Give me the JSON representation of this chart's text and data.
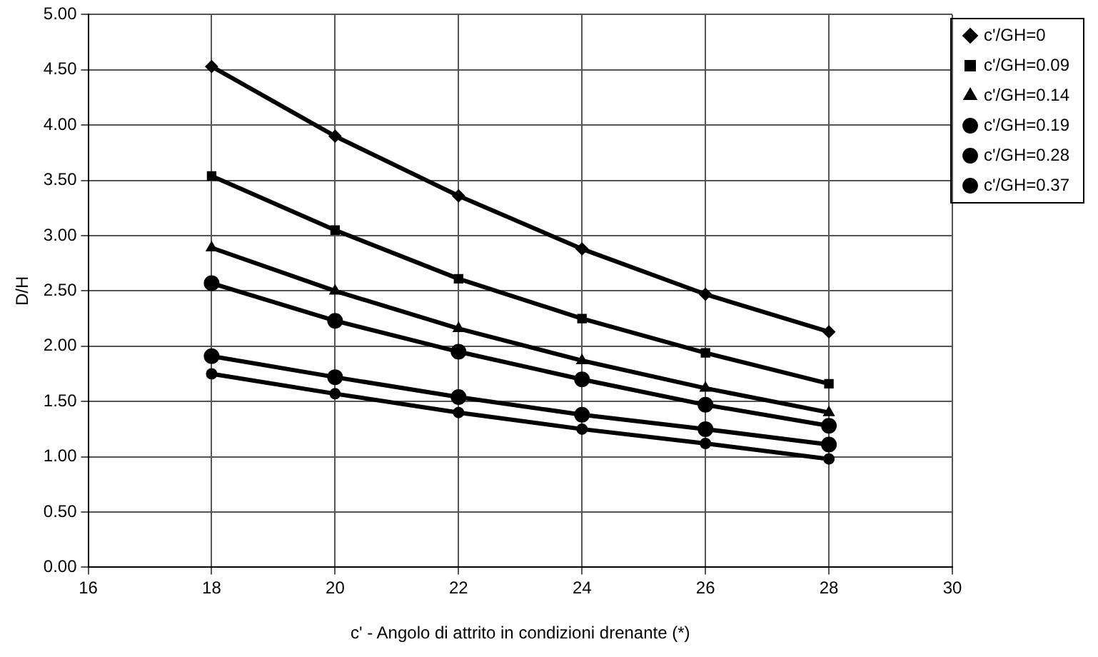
{
  "chart_data": {
    "type": "line",
    "xlabel": "c' - Angolo di attrito in condizioni drenante (*)",
    "ylabel": "D/H",
    "x": [
      18,
      20,
      22,
      24,
      26,
      28
    ],
    "series": [
      {
        "name": "c'/GH=0",
        "color": "#000000",
        "marker": "diamond",
        "values": [
          4.53,
          3.9,
          3.36,
          2.88,
          2.47,
          2.13
        ]
      },
      {
        "name": "c'/GH=0.09",
        "color": "#000000",
        "marker": "square",
        "values": [
          3.54,
          3.05,
          2.61,
          2.25,
          1.94,
          1.66
        ]
      },
      {
        "name": "c'/GH=0.14",
        "color": "#000000",
        "marker": "triangle",
        "values": [
          2.89,
          2.5,
          2.16,
          1.87,
          1.62,
          1.4
        ]
      },
      {
        "name": "c'/GH=0.19",
        "color": "#000000",
        "marker": "circle",
        "values": [
          2.57,
          2.23,
          1.95,
          1.7,
          1.47,
          1.28
        ]
      },
      {
        "name": "c'/GH=0.28",
        "color": "#000000",
        "marker": "circle",
        "values": [
          1.91,
          1.72,
          1.54,
          1.38,
          1.25,
          1.11
        ]
      },
      {
        "name": "c'/GH=0.37",
        "color": "#000000",
        "marker": "circle",
        "values": [
          1.75,
          1.57,
          1.4,
          1.25,
          1.12,
          0.98
        ]
      }
    ],
    "xlim": [
      16,
      30
    ],
    "xticks": [
      16,
      18,
      20,
      22,
      24,
      26,
      28,
      30
    ],
    "ylim": [
      0,
      5
    ],
    "yticks": [
      {
        "value": 0,
        "label": "0.00"
      },
      {
        "value": 0.5,
        "label": "0.50"
      },
      {
        "value": 1,
        "label": "1.00"
      },
      {
        "value": 1.5,
        "label": "1.50"
      },
      {
        "value": 2,
        "label": "2.00"
      },
      {
        "value": 2.5,
        "label": "2.50"
      },
      {
        "value": 3,
        "label": "3.00"
      },
      {
        "value": 3.5,
        "label": "3.50"
      },
      {
        "value": 4,
        "label": "4.00"
      },
      {
        "value": 4.5,
        "label": "4.50"
      },
      {
        "value": 5,
        "label": "5.00"
      }
    ],
    "grid": true,
    "legend": "top right",
    "line_style": "solid"
  }
}
